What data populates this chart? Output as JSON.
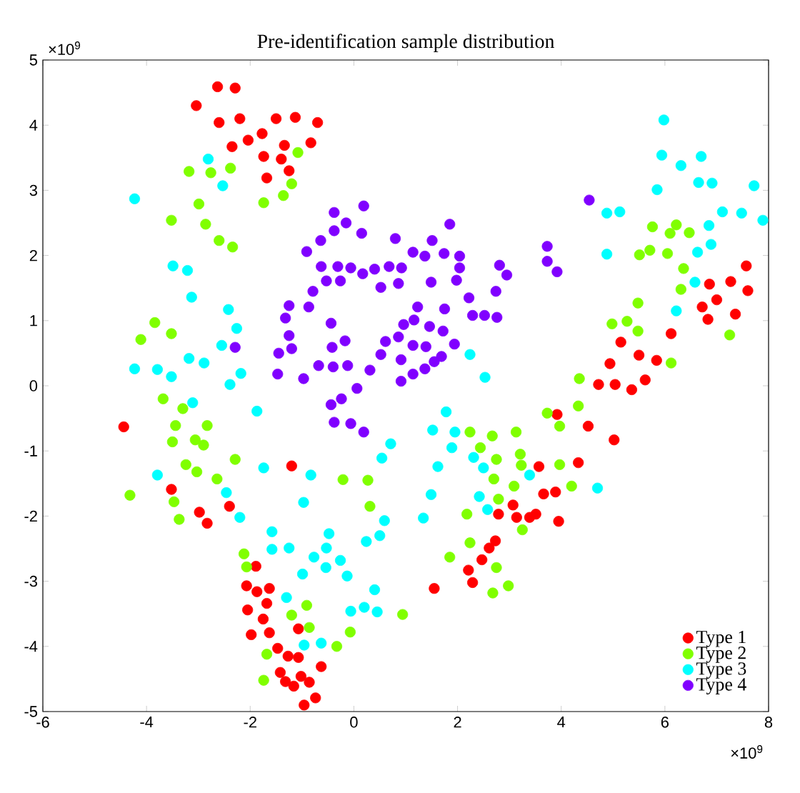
{
  "chart_data": {
    "type": "scatter",
    "title": "Pre-identification sample distribution",
    "xlim": [
      -6,
      8
    ],
    "xticks": [
      -6,
      -4,
      -2,
      0,
      2,
      4,
      6,
      8
    ],
    "ylim": [
      -5,
      5
    ],
    "yticks": [
      -5,
      -4,
      -3,
      -2,
      -1,
      0,
      1,
      2,
      3,
      4,
      5
    ],
    "annotations": [
      "×10$^{9}$",
      "×10$^{9}$"
    ],
    "legend": "bottom right",
    "series": [
      {
        "name": "Type 1",
        "color": "#ff0000",
        "x": [
          -2.63,
          -2.29,
          -3.04,
          -2.6,
          -2.2,
          -1.5,
          -1.13,
          -0.7,
          -1.77,
          -2.04,
          -2.35,
          -1.34,
          -0.83,
          -1.74,
          -1.4,
          -1.25,
          -1.68,
          -4.44,
          -3.52,
          -2.98,
          -2.83,
          -2.4,
          -1.2,
          -1.89,
          -2.07,
          -1.87,
          -1.63,
          -1.68,
          -2.05,
          -1.75,
          -1.63,
          -1.98,
          -1.47,
          -1.27,
          -1.42,
          -1.32,
          -1.16,
          -1.07,
          -1.07,
          -0.63,
          -1.02,
          -0.86,
          -0.74,
          -0.96,
          1.55,
          3.07,
          2.79,
          3.14,
          3.39,
          2.73,
          2.61,
          2.47,
          2.21,
          2.29,
          3.57,
          7.57,
          6.86,
          7.27,
          7.6,
          7.0,
          6.72,
          6.83,
          7.36,
          6.12,
          5.15,
          5.5,
          5.84,
          4.94,
          5.62,
          4.72,
          5.04,
          5.36,
          3.92,
          4.52,
          5.02,
          4.33,
          3.66,
          3.89,
          3.51,
          3.95
        ],
        "values": [
          4.59,
          4.57,
          4.3,
          4.04,
          4.1,
          4.1,
          4.12,
          4.04,
          3.87,
          3.77,
          3.67,
          3.69,
          3.73,
          3.52,
          3.48,
          3.3,
          3.19,
          -0.63,
          -1.59,
          -1.94,
          -2.11,
          -1.85,
          -1.23,
          -2.77,
          -3.07,
          -3.16,
          -3.11,
          -3.34,
          -3.44,
          -3.58,
          -3.79,
          -3.82,
          -4.03,
          -4.15,
          -4.4,
          -4.54,
          -4.61,
          -3.73,
          -4.17,
          -4.31,
          -4.46,
          -4.55,
          -4.79,
          -4.9,
          -3.11,
          -1.83,
          -1.97,
          -2.02,
          -2.02,
          -2.38,
          -2.49,
          -2.67,
          -2.83,
          -3.02,
          -1.24,
          1.84,
          1.56,
          1.6,
          1.46,
          1.32,
          1.21,
          1.02,
          1.1,
          0.8,
          0.67,
          0.47,
          0.39,
          0.34,
          0.09,
          0.02,
          0.02,
          -0.06,
          -0.44,
          -0.62,
          -0.83,
          -1.18,
          -1.66,
          -1.63,
          -1.97,
          -2.08
        ]
      },
      {
        "name": "Type 2",
        "color": "#80ff00",
        "x": [
          -3.18,
          -2.76,
          -2.38,
          -1.08,
          -1.2,
          -1.36,
          -1.74,
          -2.99,
          -3.52,
          -2.86,
          -2.6,
          -2.34,
          -3.84,
          -3.52,
          -4.11,
          -3.68,
          -3.3,
          -3.44,
          -2.83,
          -3.5,
          -3.06,
          -2.9,
          -2.29,
          -3.24,
          -3.03,
          -2.64,
          -4.32,
          -3.47,
          -3.37,
          -2.12,
          -2.07,
          -1.68,
          -1.74,
          -1.2,
          -0.91,
          -0.86,
          -0.07,
          -0.33,
          0.94,
          -0.21,
          0.27,
          0.31,
          2.24,
          2.67,
          3.13,
          2.44,
          2.75,
          3.21,
          3.23,
          2.7,
          3.09,
          2.79,
          2.18,
          3.25,
          2.24,
          1.85,
          2.75,
          2.68,
          2.98,
          5.76,
          6.22,
          6.1,
          6.47,
          5.51,
          5.71,
          6.05,
          6.36,
          6.31,
          5.48,
          4.98,
          5.27,
          5.48,
          7.25,
          6.12,
          4.35,
          3.73,
          3.97,
          4.33,
          3.97,
          4.2
        ],
        "values": [
          3.29,
          3.27,
          3.34,
          3.58,
          3.1,
          2.92,
          2.81,
          2.79,
          2.54,
          2.48,
          2.23,
          2.13,
          0.97,
          0.8,
          0.71,
          -0.2,
          -0.35,
          -0.61,
          -0.61,
          -0.86,
          -0.83,
          -0.91,
          -1.13,
          -1.21,
          -1.32,
          -1.43,
          -1.68,
          -1.78,
          -2.05,
          -2.58,
          -2.78,
          -4.12,
          -4.52,
          -3.52,
          -3.37,
          -3.71,
          -3.78,
          -4.0,
          -3.51,
          -1.44,
          -1.45,
          -1.85,
          -0.71,
          -0.77,
          -0.71,
          -0.95,
          -1.13,
          -1.05,
          -1.22,
          -1.43,
          -1.54,
          -1.74,
          -1.97,
          -2.21,
          -2.41,
          -2.63,
          -2.79,
          -3.18,
          -3.07,
          2.44,
          2.47,
          2.34,
          2.35,
          2.01,
          2.08,
          2.03,
          1.8,
          1.48,
          1.27,
          0.95,
          0.99,
          0.84,
          0.78,
          0.35,
          0.11,
          -0.42,
          -0.62,
          -0.31,
          -1.21,
          -1.54
        ]
      },
      {
        "name": "Type 3",
        "color": "#00ffff",
        "x": [
          -2.81,
          -2.53,
          -4.23,
          -3.49,
          -3.21,
          -3.13,
          -2.42,
          -2.26,
          -2.55,
          -4.23,
          -3.79,
          -3.52,
          -3.18,
          -2.89,
          -2.18,
          -2.39,
          -3.11,
          -1.87,
          -3.79,
          -2.46,
          -2.2,
          -1.74,
          -1.58,
          -1.58,
          -1.25,
          -1.3,
          2.24,
          2.53,
          1.78,
          1.52,
          1.95,
          1.89,
          0.71,
          0.54,
          1.62,
          2.31,
          2.5,
          3.39,
          2.42,
          2.58,
          1.49,
          1.34,
          -0.83,
          -0.97,
          0.59,
          0.5,
          0.24,
          -0.48,
          -0.53,
          -0.77,
          -0.26,
          -0.54,
          -0.13,
          -0.99,
          0.4,
          -0.06,
          0.2,
          0.45,
          -0.96,
          -0.63,
          5.98,
          5.94,
          6.31,
          6.7,
          6.65,
          6.91,
          7.72,
          5.85,
          4.88,
          5.13,
          7.11,
          7.48,
          7.89,
          6.85,
          6.89,
          6.63,
          4.88,
          6.58,
          6.22,
          4.7
        ],
        "values": [
          3.48,
          3.07,
          2.87,
          1.84,
          1.77,
          1.36,
          1.17,
          0.88,
          0.62,
          0.26,
          0.25,
          0.14,
          0.42,
          0.35,
          0.19,
          0.02,
          -0.26,
          -0.39,
          -1.37,
          -1.64,
          -2.02,
          -1.26,
          -2.24,
          -2.51,
          -2.49,
          -3.25,
          0.48,
          0.13,
          -0.4,
          -0.68,
          -0.71,
          -0.95,
          -0.89,
          -1.11,
          -1.24,
          -1.1,
          -1.26,
          -1.37,
          -1.7,
          -1.9,
          -1.67,
          -2.03,
          -1.37,
          -1.79,
          -2.07,
          -2.3,
          -2.39,
          -2.27,
          -2.49,
          -2.63,
          -2.68,
          -2.79,
          -2.92,
          -2.89,
          -3.13,
          -3.46,
          -3.4,
          -3.47,
          -3.98,
          -3.95,
          4.08,
          3.54,
          3.38,
          3.52,
          3.12,
          3.11,
          3.07,
          3.01,
          2.65,
          2.67,
          2.67,
          2.65,
          2.54,
          2.46,
          2.17,
          2.05,
          2.02,
          1.59,
          1.15,
          -1.57
        ]
      },
      {
        "name": "Type 4",
        "color": "#8000ff",
        "x": [
          -1.25,
          -1.32,
          -1.25,
          -1.2,
          -2.29,
          -1.45,
          -1.47,
          -0.38,
          0.19,
          -0.15,
          -0.38,
          0.15,
          -0.64,
          0.8,
          1.85,
          1.51,
          -0.91,
          1.14,
          1.37,
          1.74,
          2.04,
          -0.63,
          -0.31,
          -0.06,
          0.17,
          0.4,
          0.68,
          0.92,
          -0.53,
          -0.26,
          0.52,
          0.86,
          1.49,
          1.98,
          2.04,
          2.81,
          2.95,
          -0.79,
          2.22,
          2.74,
          -0.87,
          1.23,
          1.75,
          2.29,
          2.52,
          2.76,
          -0.44,
          0.96,
          1.16,
          1.46,
          0.86,
          1.72,
          -0.17,
          -0.42,
          0.61,
          1.14,
          1.39,
          1.94,
          0.52,
          1.69,
          -0.68,
          -0.4,
          -0.12,
          0.91,
          1.55,
          0.31,
          1.37,
          -0.97,
          0.91,
          1.14,
          0.06,
          -0.24,
          -0.44,
          -0.38,
          -0.06,
          0.19,
          4.54,
          3.73,
          3.73,
          3.92
        ],
        "values": [
          1.23,
          1.04,
          0.77,
          0.57,
          0.59,
          0.5,
          0.18,
          2.66,
          2.76,
          2.5,
          2.38,
          2.34,
          2.23,
          2.26,
          2.48,
          2.23,
          2.06,
          2.05,
          1.99,
          2.03,
          1.99,
          1.83,
          1.83,
          1.81,
          1.72,
          1.79,
          1.83,
          1.81,
          1.61,
          1.61,
          1.51,
          1.57,
          1.59,
          1.62,
          1.81,
          1.85,
          1.7,
          1.45,
          1.35,
          1.45,
          1.21,
          1.21,
          1.18,
          1.08,
          1.08,
          1.05,
          0.96,
          0.94,
          1.01,
          0.91,
          0.75,
          0.84,
          0.69,
          0.59,
          0.68,
          0.62,
          0.6,
          0.64,
          0.48,
          0.45,
          0.31,
          0.29,
          0.31,
          0.4,
          0.37,
          0.24,
          0.26,
          0.11,
          0.07,
          0.18,
          -0.04,
          -0.2,
          -0.29,
          -0.56,
          -0.58,
          -0.71,
          2.85,
          2.14,
          1.91,
          1.75
        ]
      }
    ]
  }
}
